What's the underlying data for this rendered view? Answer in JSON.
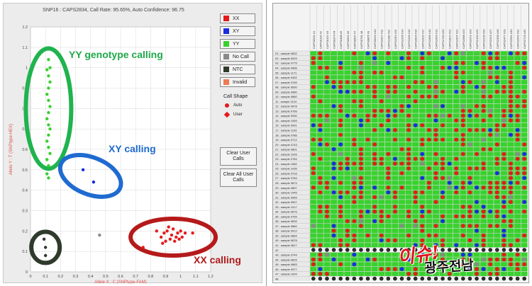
{
  "left_panel": {
    "plot_title": "SNP16 : CAPS2834, Call Rate: 95.65%, Auto Confidence: 96.75",
    "legend": [
      {
        "label": "XX",
        "color": "#e51b1b"
      },
      {
        "label": "XY",
        "color": "#1a2ce0"
      },
      {
        "label": "YY",
        "color": "#39d12e"
      },
      {
        "label": "No Call",
        "color": "#8a8a8a"
      },
      {
        "label": "NTC",
        "color": "#2f3a2c"
      },
      {
        "label": "Invalid",
        "color": "#f07a52"
      }
    ],
    "call_shape": {
      "title": "Call Shape",
      "auto_label": "Auto",
      "user_label": "User"
    },
    "clear_user_calls": "Clear User Calls",
    "clear_all_user_calls": "Clear All User Calls",
    "annotations": {
      "yy": "YY genotype calling",
      "xy": "XY calling",
      "xx": "XX calling"
    },
    "annotation_colors": {
      "yy": "#20a94a",
      "xy": "#1f6bd0",
      "xx": "#b01a1a"
    }
  },
  "chart_data": {
    "type": "scatter",
    "title": "SNP16 : CAPS2834, Call Rate: 95.65%, Auto Confidence: 96.75",
    "xlabel": "Allele X : C (SNPtype-FAM)",
    "ylabel": "Allele Y : T (SNPtype-HEX)",
    "xlim": [
      0,
      1.2
    ],
    "ylim": [
      0,
      1.2
    ],
    "x_ticks": [
      "0",
      "0.1",
      "0.2",
      "0.3",
      "0.4",
      "0.5",
      "0.6",
      "0.7",
      "0.8",
      "0.9",
      "1",
      "1.1",
      "1.2"
    ],
    "y_ticks": [
      "0",
      "0.1",
      "0.2",
      "0.3",
      "0.4",
      "0.5",
      "0.6",
      "0.7",
      "0.8",
      "0.9",
      "1",
      "1.1",
      "1.2"
    ],
    "grid": true,
    "series": [
      {
        "name": "YY",
        "color": "#39d12e",
        "points": [
          [
            0.12,
            1.04
          ],
          [
            0.13,
            1.0
          ],
          [
            0.11,
            0.99
          ],
          [
            0.12,
            0.96
          ],
          [
            0.13,
            0.93
          ],
          [
            0.12,
            0.9
          ],
          [
            0.11,
            0.87
          ],
          [
            0.12,
            0.84
          ],
          [
            0.13,
            0.81
          ],
          [
            0.12,
            0.78
          ],
          [
            0.11,
            0.75
          ],
          [
            0.12,
            0.72
          ],
          [
            0.13,
            0.7
          ],
          [
            0.12,
            0.67
          ],
          [
            0.11,
            0.64
          ],
          [
            0.12,
            0.61
          ],
          [
            0.13,
            0.58
          ],
          [
            0.11,
            0.55
          ],
          [
            0.12,
            0.52
          ],
          [
            0.11,
            0.48
          ],
          [
            0.12,
            0.46
          ]
        ]
      },
      {
        "name": "XY",
        "color": "#1a2ce0",
        "points": [
          [
            0.35,
            0.5
          ],
          [
            0.42,
            0.44
          ]
        ]
      },
      {
        "name": "XX",
        "color": "#e51b1b",
        "points": [
          [
            0.84,
            0.2
          ],
          [
            0.87,
            0.17
          ],
          [
            0.89,
            0.19
          ],
          [
            0.9,
            0.15
          ],
          [
            0.91,
            0.2
          ],
          [
            0.93,
            0.16
          ],
          [
            0.94,
            0.18
          ],
          [
            0.95,
            0.21
          ],
          [
            0.96,
            0.15
          ],
          [
            0.97,
            0.17
          ],
          [
            0.98,
            0.19
          ],
          [
            0.99,
            0.16
          ],
          [
            1.0,
            0.2
          ],
          [
            1.01,
            0.17
          ],
          [
            1.03,
            0.19
          ],
          [
            0.88,
            0.14
          ],
          [
            0.92,
            0.22
          ],
          [
            0.75,
            0.12
          ],
          [
            1.08,
            0.19
          ]
        ]
      },
      {
        "name": "No Call",
        "color": "#8a8a8a",
        "points": [
          [
            0.46,
            0.18
          ]
        ]
      },
      {
        "name": "NTC",
        "color": "#2f3a2c",
        "points": [
          [
            0.1,
            0.12
          ],
          [
            0.09,
            0.16
          ],
          [
            0.1,
            0.08
          ]
        ]
      }
    ]
  },
  "right_panel": {
    "column_headers": [
      "CAPS0031 #1",
      "CAPS0116 #2",
      "CAPS0197 #3",
      "CAPS0374 #4",
      "CAPS0488 #5",
      "CAPS0552 #6",
      "CAPS0697 #7",
      "CAPS0781 #8",
      "CAPS0865 #9",
      "CAPS0942 #10",
      "CAPS1027 #11",
      "CAPS1108 #12",
      "CAPS1193 #13",
      "CAPS1266 #14",
      "CAPS1349 #15",
      "CAPS2834 #16",
      "CAPS1502 #17",
      "CAPS1585 #18",
      "CAPS1663 #19",
      "CAPS1740 #20",
      "CAPS1822 #21",
      "CAPS1907 #22",
      "CAPS1988 #23",
      "CAPS2071 #24",
      "CAPS2150 #25",
      "CAPS2236 #26",
      "CAPS2315 #27",
      "CAPS2398 #28",
      "CAPS2477 #29",
      "CAPS2561 #30",
      "CAPS2642 #31",
      "CAPS2725 #32"
    ],
    "row_labels": [
      "01 : sample 0632",
      "02 : sample 0929",
      "03 : sample 0775",
      "04 : sample 0966",
      "05 : sample 1171",
      "06 : sample 0452",
      "07 : sample 0765",
      "08 : sample 0830",
      "09 : sample 0980",
      "10 : sample 0860",
      "11 : sample 1124",
      "12 : sample 0678",
      "13 : sample 0766",
      "14 : sample 0930",
      "15 : sample 1059",
      "16 : sample 0991",
      "17 : sample 1103",
      "18 : sample 0786",
      "19 : sample 0712",
      "20 : sample 0743",
      "21 : sample 0891",
      "22 : sample 1026",
      "23 : sample 0784",
      "24 : sample 1082",
      "25 : sample 1035",
      "26 : sample 0733",
      "27 : sample 0784",
      "28 : sample 0874",
      "29 : sample 0897",
      "30 : sample 1045",
      "31 : sample 0965",
      "32 : sample 0907",
      "33 : sample 1017",
      "34 : sample 0675",
      "35 : sample 0759",
      "36 : sample 0839",
      "37 : sample 0860",
      "38 : sample 0912",
      "39 : sample 0864",
      "40 : sample 0878",
      "41 : sample 0817",
      "42",
      "43 : sample 0744",
      "44 : sample 0625",
      "45 : sample 0883",
      "46 : sample 0977",
      "47 : sample 1004",
      "48"
    ],
    "cell_colors": {
      "xx": "#e51b1b",
      "xy": "#1a2ce0",
      "yy": "#39d12e",
      "nocall": "#8a8a8a",
      "ntc": "#2b2b2b"
    }
  },
  "watermark": {
    "line1": "이슈!",
    "line2": "광주전남"
  }
}
